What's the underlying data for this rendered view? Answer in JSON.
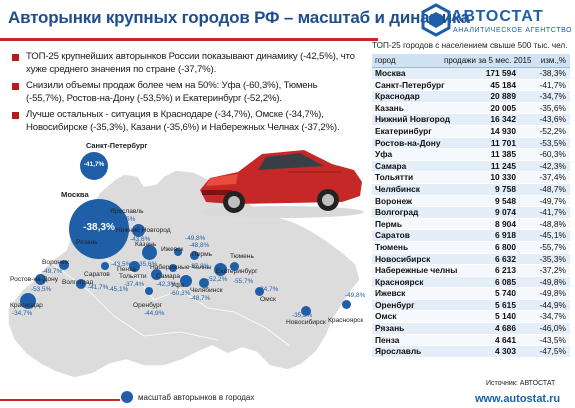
{
  "title": "Авторынки крупных городов РФ – масштаб и динамика",
  "logo": {
    "name": "АВТОСТАТ",
    "tagline": "АНАЛИТИЧЕСКОЕ АГЕНТСТВО"
  },
  "bullets": [
    "ТОП-25 крупнейших авторынков России показывают динамику (-42,5%), что хуже среднего значения по стране (-37,7%).",
    "Снизили объемы продаж более чем на 50%: Уфа (-60,3%), Тюмень (-55,7%), Ростов-на-Дону (-53,5%) и Екатеринбург (-52,2%).",
    "Лучше остальных - ситуация в Краснодаре (-34,7%), Омске (-34,7%), Новосибирске (-35,3%), Казани (-35,6%) и Набережных Челнах (-37,2%)."
  ],
  "map": {
    "cities": [
      {
        "name": "Санкт-Петербург",
        "pct": "-41,7%"
      },
      {
        "name": "Москва",
        "pct": "-38,3%"
      },
      {
        "name": "Ярославль",
        "pct": "-47,5%"
      },
      {
        "name": "Рязань",
        "pct": "-46,0%"
      },
      {
        "name": "Нижний Новгород",
        "pct": "-43,6%"
      },
      {
        "name": "Воронеж",
        "pct": "-49,7%"
      },
      {
        "name": "Саратов",
        "pct": "-45,1%"
      },
      {
        "name": "Тольятти",
        "pct": "-37,4%"
      },
      {
        "name": "Казань",
        "pct": "-35,6%"
      },
      {
        "name": "Ижевск",
        "pct": "-49,8%"
      },
      {
        "name": "Пермь",
        "pct": "-48,8%"
      },
      {
        "name": "Набережные Челны",
        "pct": "-37,2%"
      },
      {
        "name": "Екатеринбург",
        "pct": "-52,2%"
      },
      {
        "name": "Самара",
        "pct": "-42,3%"
      },
      {
        "name": "Уфа",
        "pct": "-60,3%"
      },
      {
        "name": "Челябинск",
        "pct": "-48,7%"
      },
      {
        "name": "Тюмень",
        "pct": "-55,7%"
      },
      {
        "name": "Ростов-на-Дону",
        "pct": "-53,5%"
      },
      {
        "name": "Волгоград",
        "pct": "-41,7%"
      },
      {
        "name": "Пенза",
        "pct": "-43,5%"
      },
      {
        "name": "Краснодар",
        "pct": "-34,7%"
      },
      {
        "name": "Оренбург",
        "pct": "-44,9%"
      },
      {
        "name": "Омск",
        "pct": "-34,7%"
      },
      {
        "name": "Новосибирск",
        "pct": "-35,3%"
      },
      {
        "name": "Красноярск",
        "pct": "-49,8%"
      }
    ],
    "legend": "масштаб авторынков в городах"
  },
  "table": {
    "caption": "ТОП-25 городов с населением свыше 500 тыс. чел.",
    "headers": [
      "город",
      "продажи за 5 мес. 2015",
      "изм.,%"
    ],
    "rows": [
      [
        "Москва",
        "171 594",
        "-38,3%"
      ],
      [
        "Санкт-Петербург",
        "45 184",
        "-41,7%"
      ],
      [
        "Краснодар",
        "20 889",
        "-34,7%"
      ],
      [
        "Казань",
        "20 005",
        "-35,6%"
      ],
      [
        "Нижний Новгород",
        "16 342",
        "-43,6%"
      ],
      [
        "Екатеринбург",
        "14 930",
        "-52,2%"
      ],
      [
        "Ростов-на-Дону",
        "11 701",
        "-53,5%"
      ],
      [
        "Уфа",
        "11 385",
        "-60,3%"
      ],
      [
        "Самара",
        "11 245",
        "-42,3%"
      ],
      [
        "Тольятти",
        "10 330",
        "-37,4%"
      ],
      [
        "Челябинск",
        "9 758",
        "-48,7%"
      ],
      [
        "Воронеж",
        "9 548",
        "-49,7%"
      ],
      [
        "Волгоград",
        "9 074",
        "-41,7%"
      ],
      [
        "Пермь",
        "8 904",
        "-48,8%"
      ],
      [
        "Саратов",
        "6 918",
        "-45,1%"
      ],
      [
        "Тюмень",
        "6 800",
        "-55,7%"
      ],
      [
        "Новосибирск",
        "6 632",
        "-35,3%"
      ],
      [
        "Набережные челны",
        "6 213",
        "-37,2%"
      ],
      [
        "Красноярск",
        "6 085",
        "-49,8%"
      ],
      [
        "Ижевск",
        "5 740",
        "-49,8%"
      ],
      [
        "Оренбург",
        "5 615",
        "-44,9%"
      ],
      [
        "Омск",
        "5 140",
        "-34,7%"
      ],
      [
        "Рязань",
        "4 686",
        "-46,0%"
      ],
      [
        "Пенза",
        "4 641",
        "-43,5%"
      ],
      [
        "Ярославль",
        "4 303",
        "-47,5%"
      ]
    ]
  },
  "source": "Источник: АВТОСТАТ",
  "website": "www.autostat.ru",
  "colors": {
    "accent": "#c62828",
    "brand": "#1f5fa8",
    "map_fill": "#dcdcdc",
    "bubble": "#1f5fa8"
  }
}
